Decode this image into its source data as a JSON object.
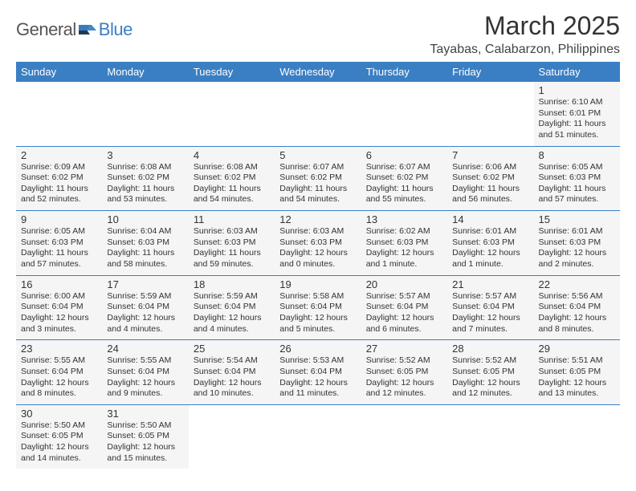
{
  "logo": {
    "part1": "General",
    "part2": "Blue"
  },
  "title": "March 2025",
  "location": "Tayabas, Calabarzon, Philippines",
  "colors": {
    "header_bg": "#3a7fc4",
    "header_fg": "#ffffff",
    "cell_bg": "#f5f5f5",
    "border": "#3a7fc4",
    "logo_gray": "#555555",
    "logo_blue": "#3a7fc4"
  },
  "weekdays": [
    "Sunday",
    "Monday",
    "Tuesday",
    "Wednesday",
    "Thursday",
    "Friday",
    "Saturday"
  ],
  "first_weekday_index": 6,
  "days": [
    {
      "n": 1,
      "sr": "6:10 AM",
      "ss": "6:01 PM",
      "dl": "11 hours and 51 minutes."
    },
    {
      "n": 2,
      "sr": "6:09 AM",
      "ss": "6:02 PM",
      "dl": "11 hours and 52 minutes."
    },
    {
      "n": 3,
      "sr": "6:08 AM",
      "ss": "6:02 PM",
      "dl": "11 hours and 53 minutes."
    },
    {
      "n": 4,
      "sr": "6:08 AM",
      "ss": "6:02 PM",
      "dl": "11 hours and 54 minutes."
    },
    {
      "n": 5,
      "sr": "6:07 AM",
      "ss": "6:02 PM",
      "dl": "11 hours and 54 minutes."
    },
    {
      "n": 6,
      "sr": "6:07 AM",
      "ss": "6:02 PM",
      "dl": "11 hours and 55 minutes."
    },
    {
      "n": 7,
      "sr": "6:06 AM",
      "ss": "6:02 PM",
      "dl": "11 hours and 56 minutes."
    },
    {
      "n": 8,
      "sr": "6:05 AM",
      "ss": "6:03 PM",
      "dl": "11 hours and 57 minutes."
    },
    {
      "n": 9,
      "sr": "6:05 AM",
      "ss": "6:03 PM",
      "dl": "11 hours and 57 minutes."
    },
    {
      "n": 10,
      "sr": "6:04 AM",
      "ss": "6:03 PM",
      "dl": "11 hours and 58 minutes."
    },
    {
      "n": 11,
      "sr": "6:03 AM",
      "ss": "6:03 PM",
      "dl": "11 hours and 59 minutes."
    },
    {
      "n": 12,
      "sr": "6:03 AM",
      "ss": "6:03 PM",
      "dl": "12 hours and 0 minutes."
    },
    {
      "n": 13,
      "sr": "6:02 AM",
      "ss": "6:03 PM",
      "dl": "12 hours and 1 minute."
    },
    {
      "n": 14,
      "sr": "6:01 AM",
      "ss": "6:03 PM",
      "dl": "12 hours and 1 minute."
    },
    {
      "n": 15,
      "sr": "6:01 AM",
      "ss": "6:03 PM",
      "dl": "12 hours and 2 minutes."
    },
    {
      "n": 16,
      "sr": "6:00 AM",
      "ss": "6:04 PM",
      "dl": "12 hours and 3 minutes."
    },
    {
      "n": 17,
      "sr": "5:59 AM",
      "ss": "6:04 PM",
      "dl": "12 hours and 4 minutes."
    },
    {
      "n": 18,
      "sr": "5:59 AM",
      "ss": "6:04 PM",
      "dl": "12 hours and 4 minutes."
    },
    {
      "n": 19,
      "sr": "5:58 AM",
      "ss": "6:04 PM",
      "dl": "12 hours and 5 minutes."
    },
    {
      "n": 20,
      "sr": "5:57 AM",
      "ss": "6:04 PM",
      "dl": "12 hours and 6 minutes."
    },
    {
      "n": 21,
      "sr": "5:57 AM",
      "ss": "6:04 PM",
      "dl": "12 hours and 7 minutes."
    },
    {
      "n": 22,
      "sr": "5:56 AM",
      "ss": "6:04 PM",
      "dl": "12 hours and 8 minutes."
    },
    {
      "n": 23,
      "sr": "5:55 AM",
      "ss": "6:04 PM",
      "dl": "12 hours and 8 minutes."
    },
    {
      "n": 24,
      "sr": "5:55 AM",
      "ss": "6:04 PM",
      "dl": "12 hours and 9 minutes."
    },
    {
      "n": 25,
      "sr": "5:54 AM",
      "ss": "6:04 PM",
      "dl": "12 hours and 10 minutes."
    },
    {
      "n": 26,
      "sr": "5:53 AM",
      "ss": "6:04 PM",
      "dl": "12 hours and 11 minutes."
    },
    {
      "n": 27,
      "sr": "5:52 AM",
      "ss": "6:05 PM",
      "dl": "12 hours and 12 minutes."
    },
    {
      "n": 28,
      "sr": "5:52 AM",
      "ss": "6:05 PM",
      "dl": "12 hours and 12 minutes."
    },
    {
      "n": 29,
      "sr": "5:51 AM",
      "ss": "6:05 PM",
      "dl": "12 hours and 13 minutes."
    },
    {
      "n": 30,
      "sr": "5:50 AM",
      "ss": "6:05 PM",
      "dl": "12 hours and 14 minutes."
    },
    {
      "n": 31,
      "sr": "5:50 AM",
      "ss": "6:05 PM",
      "dl": "12 hours and 15 minutes."
    }
  ],
  "labels": {
    "sunrise": "Sunrise:",
    "sunset": "Sunset:",
    "daylight": "Daylight:"
  }
}
